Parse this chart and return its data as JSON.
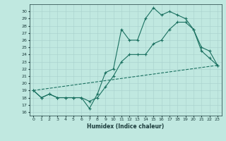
{
  "title": "",
  "xlabel": "Humidex (Indice chaleur)",
  "ylabel": "",
  "bg_color": "#c0e8e0",
  "line_color": "#1a7060",
  "xlim": [
    -0.5,
    23.5
  ],
  "ylim": [
    15.5,
    31.0
  ],
  "xticks": [
    0,
    1,
    2,
    3,
    4,
    5,
    6,
    7,
    8,
    9,
    10,
    11,
    12,
    13,
    14,
    15,
    16,
    17,
    18,
    19,
    20,
    21,
    22,
    23
  ],
  "yticks": [
    16,
    17,
    18,
    19,
    20,
    21,
    22,
    23,
    24,
    25,
    26,
    27,
    28,
    29,
    30
  ],
  "line1_x": [
    0,
    1,
    2,
    3,
    4,
    5,
    6,
    7,
    8,
    9,
    10,
    11,
    12,
    13,
    14,
    15,
    16,
    17,
    18,
    19,
    20,
    21,
    22,
    23
  ],
  "line1_y": [
    19,
    18,
    18.5,
    18,
    18,
    18,
    18,
    16.5,
    18.5,
    21.5,
    22,
    27.5,
    26,
    26,
    29,
    30.5,
    29.5,
    30,
    29.5,
    29,
    27.5,
    25,
    24.5,
    22.5
  ],
  "line2_x": [
    0,
    1,
    2,
    3,
    4,
    5,
    6,
    7,
    8,
    9,
    10,
    11,
    12,
    13,
    14,
    15,
    16,
    17,
    18,
    19,
    20,
    21,
    22,
    23
  ],
  "line2_y": [
    19,
    18,
    18.5,
    18,
    18,
    18,
    18,
    17.5,
    18,
    19.5,
    21,
    23,
    24,
    24,
    24,
    25.5,
    26,
    27.5,
    28.5,
    28.5,
    27.5,
    24.5,
    23.5,
    22.5
  ],
  "line3_x": [
    0,
    23
  ],
  "line3_y": [
    19,
    22.5
  ]
}
